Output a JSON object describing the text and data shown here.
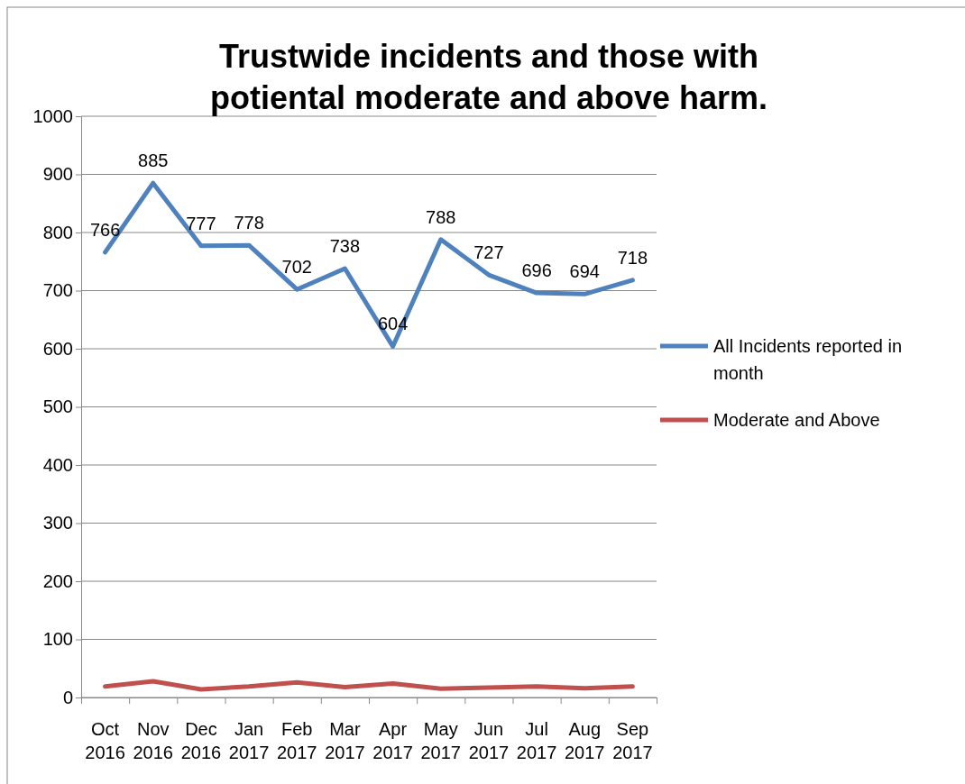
{
  "chart_data": {
    "type": "line",
    "title": "Trustwide incidents and those with potiental moderate and above harm.",
    "categories": [
      "Oct 2016",
      "Nov 2016",
      "Dec 2016",
      "Jan 2017",
      "Feb 2017",
      "Mar 2017",
      "Apr 2017",
      "May 2017",
      "Jun 2017",
      "Jul 2017",
      "Aug 2017",
      "Sep 2017"
    ],
    "series": [
      {
        "name": "All Incidents reported in month",
        "color": "#4f81bd",
        "values": [
          766,
          885,
          777,
          778,
          702,
          738,
          604,
          788,
          727,
          696,
          694,
          718
        ],
        "value_labels": [
          "766",
          "885",
          "777",
          "778",
          "702",
          "738",
          "604",
          "788",
          "727",
          "696",
          "694",
          "718"
        ]
      },
      {
        "name": "Moderate and Above",
        "color": "#c0504d",
        "values": [
          19,
          28,
          14,
          19,
          26,
          18,
          24,
          15,
          17,
          19,
          16,
          19
        ]
      }
    ],
    "ylim": [
      0,
      1000
    ],
    "yticks": [
      0,
      100,
      200,
      300,
      400,
      500,
      600,
      700,
      800,
      900,
      1000
    ],
    "grid": "y",
    "legend": "right",
    "marker": "none",
    "line_style": "solid"
  }
}
